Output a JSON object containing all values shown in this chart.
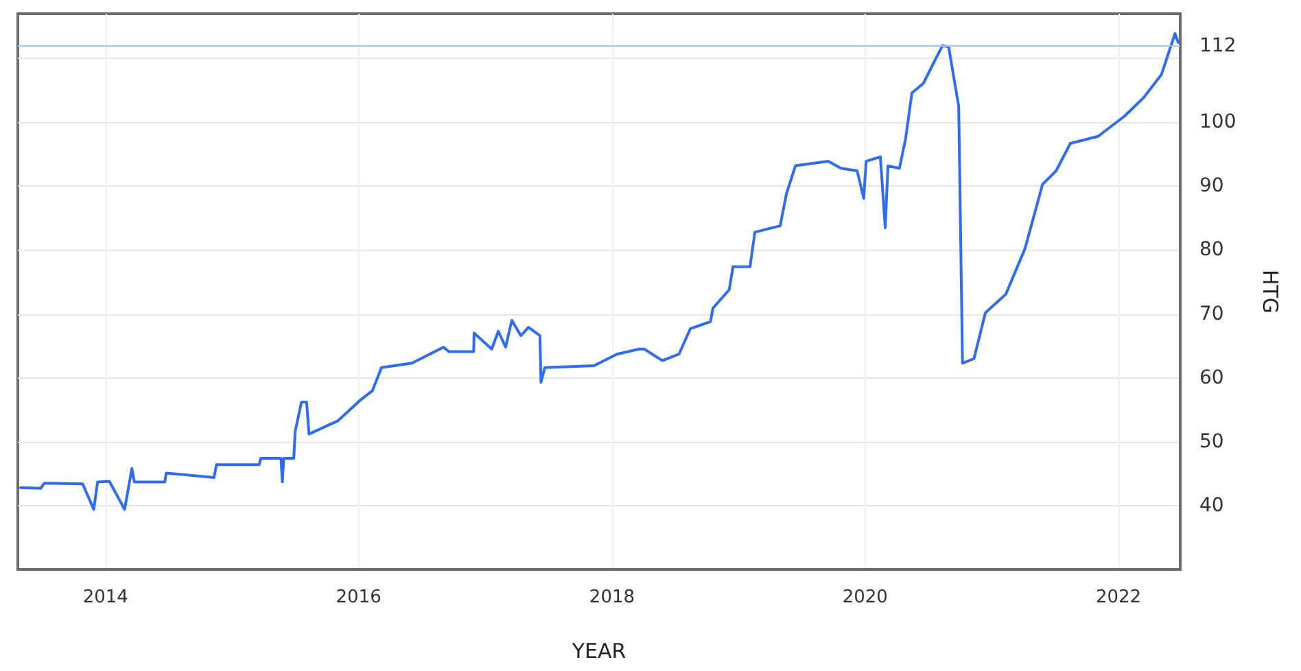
{
  "chart_data": {
    "type": "line",
    "xlabel": "YEAR",
    "ylabel": "HTG",
    "x": [
      "2013-05-01",
      "2013-06-28",
      "2013-07-08",
      "2013-10-27",
      "2013-11-28",
      "2013-12-09",
      "2014-01-12",
      "2014-02-25",
      "2014-03-18",
      "2014-03-25",
      "2014-06-21",
      "2014-06-25",
      "2014-11-10",
      "2014-11-17",
      "2015-03-20",
      "2015-03-25",
      "2015-05-22",
      "2015-05-26",
      "2015-05-30",
      "2015-06-28",
      "2015-07-02",
      "2015-07-20",
      "2015-08-04",
      "2015-08-11",
      "2015-11-03",
      "2016-01-08",
      "2016-02-10",
      "2016-03-07",
      "2016-06-03",
      "2016-09-02",
      "2016-09-17",
      "2016-11-28",
      "2016-11-29",
      "2017-01-19",
      "2017-02-07",
      "2017-02-28",
      "2017-03-18",
      "2017-04-13",
      "2017-05-05",
      "2017-06-07",
      "2017-06-10",
      "2017-06-21",
      "2017-11-10",
      "2018-01-15",
      "2018-03-20",
      "2018-04-04",
      "2018-05-26",
      "2018-07-13",
      "2018-08-15",
      "2018-10-12",
      "2018-10-19",
      "2018-12-05",
      "2018-12-16",
      "2019-02-03",
      "2019-02-17",
      "2019-05-01",
      "2019-05-19",
      "2019-06-14",
      "2019-09-17",
      "2019-10-23",
      "2019-12-09",
      "2019-12-28",
      "2020-01-04",
      "2020-02-14",
      "2020-02-28",
      "2020-03-07",
      "2020-04-09",
      "2020-04-27",
      "2020-05-15",
      "2020-06-17",
      "2020-07-27",
      "2020-08-11",
      "2020-08-29",
      "2020-09-27",
      "2020-10-08",
      "2020-11-10",
      "2020-12-13",
      "2021-02-10",
      "2021-04-06",
      "2021-05-27",
      "2021-07-05",
      "2021-08-15",
      "2021-11-03",
      "2022-01-19",
      "2022-03-15",
      "2022-05-05",
      "2022-06-13",
      "2022-06-22"
    ],
    "values": [
      42.8,
      42.7,
      43.5,
      43.4,
      39.4,
      43.7,
      43.8,
      39.4,
      45.8,
      43.7,
      43.7,
      45.1,
      44.4,
      46.4,
      46.4,
      47.4,
      47.4,
      43.7,
      47.4,
      47.4,
      51.6,
      56.2,
      56.2,
      51.2,
      53.3,
      56.6,
      58.0,
      61.6,
      62.3,
      64.8,
      64.1,
      64.1,
      67.0,
      64.5,
      67.3,
      64.8,
      69.0,
      66.6,
      67.9,
      66.6,
      59.3,
      61.6,
      61.9,
      63.7,
      64.5,
      64.5,
      62.7,
      63.7,
      67.7,
      68.8,
      70.9,
      73.8,
      77.4,
      77.4,
      82.8,
      83.8,
      88.8,
      93.2,
      93.9,
      92.8,
      92.4,
      88.1,
      93.9,
      94.6,
      83.5,
      93.2,
      92.8,
      97.5,
      104.6,
      106.1,
      110.4,
      112.0,
      111.8,
      102.5,
      62.3,
      63.0,
      70.2,
      73.1,
      80.2,
      90.3,
      92.4,
      96.7,
      97.8,
      101.0,
      103.9,
      107.5,
      113.9,
      112.5
    ],
    "color": "#2f6cf6",
    "xlim": [
      "2013-04-23",
      "2022-06-28"
    ],
    "xticks": [
      "2014",
      "2016",
      "2018",
      "2020",
      "2022"
    ],
    "ylim": [
      30,
      117
    ],
    "yticks": [
      40,
      50,
      60,
      70,
      80,
      90,
      100,
      {
        "value": 110,
        "label": null
      },
      112
    ],
    "ref_lines": [
      {
        "axis": "y",
        "value": 112,
        "color": "#a9c4f5"
      }
    ],
    "grid": true,
    "marker": "none",
    "line_style": "solid"
  }
}
